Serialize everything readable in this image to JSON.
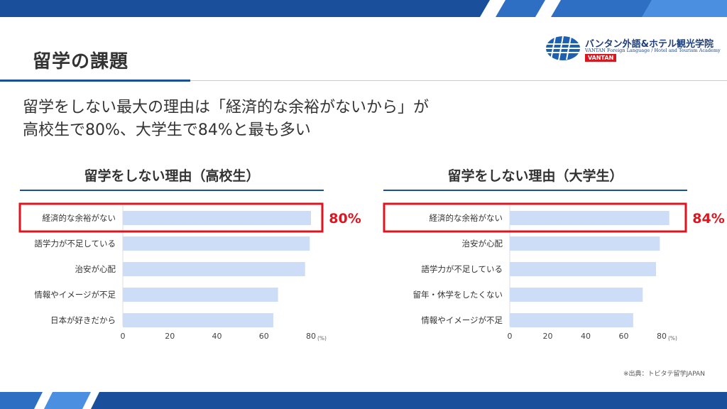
{
  "page": {
    "title": "留学の課題",
    "headline": [
      "留学をしない最大の理由は「経済的な余裕がないから」が",
      "高校生で80%、大学生で84%と最も多い"
    ],
    "source": "※出典：トビタテ留学JAPAN"
  },
  "logo": {
    "name": "バンタン外語&ホテル観光学院",
    "subtitle": "VANTAN Foreign Language / Hotel and Tourism Academy",
    "badge": "VANTAN"
  },
  "colors": {
    "bar": "#cddcf7",
    "highlight": "#e0141e",
    "accent": "#1a4f9c"
  },
  "chart_data": [
    {
      "type": "bar",
      "orientation": "horizontal",
      "title": "留学をしない理由（高校生）",
      "categories": [
        "経済的な余裕がない",
        "語学力が不足している",
        "治安が心配",
        "情報やイメージが不足",
        "日本が好きだから"
      ],
      "values": [
        80,
        79.5,
        77.5,
        66,
        64
      ],
      "xlim": [
        0,
        80
      ],
      "xticks": [
        "0",
        "20",
        "40",
        "60",
        "80"
      ],
      "unit": "(%)",
      "highlight_index": 0,
      "highlight_label": "80%",
      "grid": false
    },
    {
      "type": "bar",
      "orientation": "horizontal",
      "title": "留学をしない理由（大学生）",
      "categories": [
        "経済的な余裕がない",
        "治安が心配",
        "語学力が不足している",
        "留年・休学をしたくない",
        "情報やイメージが不足"
      ],
      "values": [
        84,
        79,
        77,
        70,
        65
      ],
      "xlim": [
        0,
        80
      ],
      "xticks": [
        "0",
        "20",
        "40",
        "60",
        "80"
      ],
      "unit": "(%)",
      "highlight_index": 0,
      "highlight_label": "84%",
      "grid": false
    }
  ]
}
